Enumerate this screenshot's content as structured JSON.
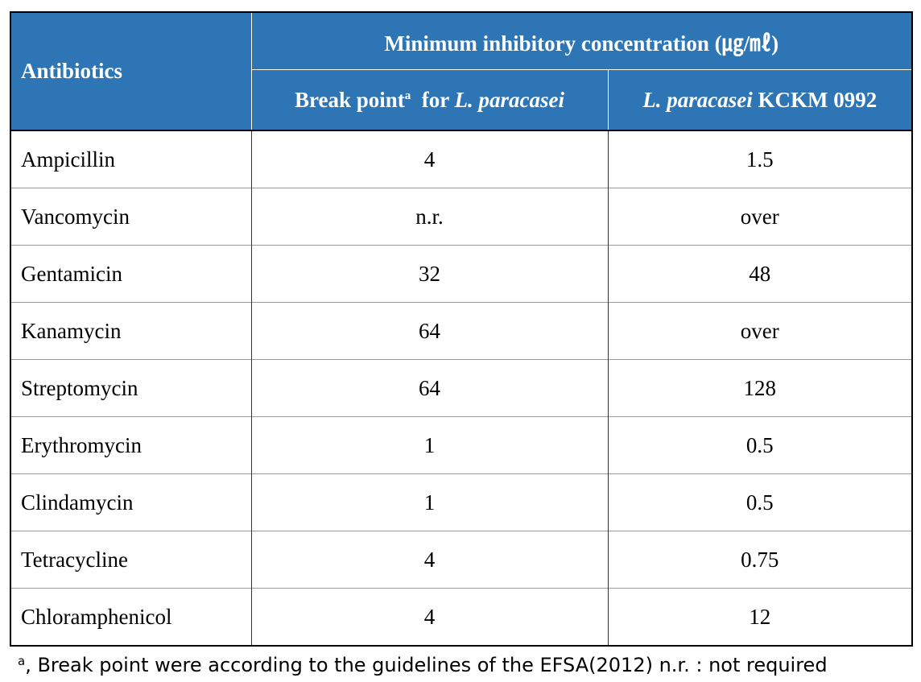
{
  "header": {
    "antibiotics": "Antibiotics",
    "mic": "Minimum inhibitory concentration (㎍/㎖)",
    "breakpoint": [
      "Break point",
      "a",
      "for",
      "L. paracasei"
    ],
    "strain": [
      "L. paracasei",
      "KCKM 0992"
    ]
  },
  "table": {
    "rows": [
      [
        "Ampicillin",
        4,
        1.5
      ],
      [
        "Vancomycin",
        "n.r.",
        "over"
      ],
      [
        "Gentamicin",
        32,
        48
      ],
      [
        "Kanamycin",
        64,
        "over"
      ],
      [
        "Streptomycin",
        64,
        128
      ],
      [
        "Erythromycin",
        1,
        0.5
      ],
      [
        "Clindamycin",
        1,
        0.5
      ],
      [
        "Tetracycline",
        4,
        0.75
      ],
      [
        "Chloramphenicol",
        4,
        12
      ]
    ]
  },
  "footnote": [
    "a",
    ", Break point were according to the guidelines of the EFSA(2012) n.r. : not required"
  ]
}
